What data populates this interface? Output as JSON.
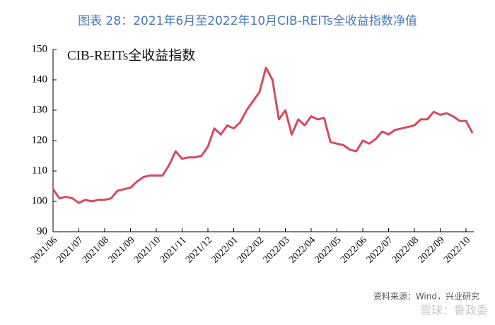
{
  "chart_data": {
    "type": "line",
    "title": "图表 28：2021年6月至2022年10月CIB-REITs全收益指数净值",
    "source": "资料来源：Wind，兴业研究",
    "watermark": "雪球：鲁政委",
    "categories": [
      "2021/06",
      null,
      null,
      null,
      "2021/07",
      null,
      null,
      null,
      "2021/08",
      null,
      null,
      null,
      "2021/09",
      null,
      null,
      null,
      "2021/10",
      null,
      null,
      null,
      "2021/11",
      null,
      null,
      null,
      "2021/12",
      null,
      null,
      null,
      "2022/01",
      null,
      null,
      null,
      "2022/02",
      null,
      null,
      null,
      "2022/03",
      null,
      null,
      null,
      "2022/04",
      null,
      null,
      null,
      "2022/05",
      null,
      null,
      null,
      "2022/06",
      null,
      null,
      null,
      "2022/07",
      null,
      null,
      null,
      "2022/08",
      null,
      null,
      null,
      "2022/09",
      null,
      null,
      null,
      "2022/10",
      null
    ],
    "series": [
      {
        "name": "CIB-REITs全收益指数",
        "color": "#d64a5e",
        "values": [
          104,
          101,
          101.5,
          101,
          99.5,
          100.5,
          100,
          100.5,
          100.5,
          101,
          103.5,
          104,
          104.5,
          106.5,
          108,
          108.5,
          108.5,
          108.5,
          112,
          116.5,
          114,
          114.5,
          114.5,
          115,
          118,
          124,
          122,
          125,
          124,
          126,
          130,
          133,
          136,
          144,
          140,
          127,
          130,
          122,
          127,
          125,
          128,
          127,
          127.5,
          119.5,
          119,
          118.5,
          117,
          116.5,
          120,
          119,
          120.5,
          123,
          122,
          123.5,
          124,
          124.5,
          125,
          127,
          127,
          129.5,
          128.5,
          129,
          128,
          126.5,
          126.5,
          122.5
        ]
      }
    ],
    "ylim": [
      90,
      150
    ],
    "yticks": [
      90,
      100,
      110,
      120,
      130,
      140,
      150
    ]
  }
}
